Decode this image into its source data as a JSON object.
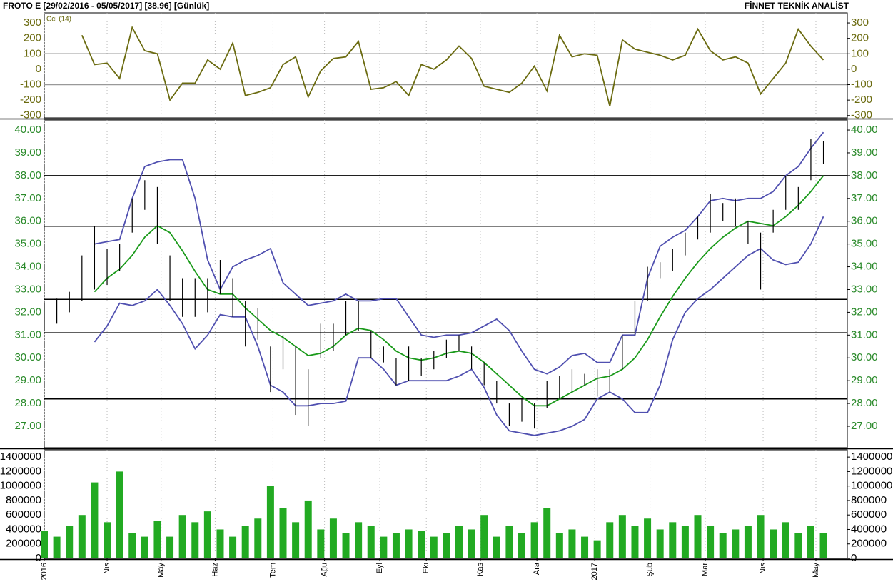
{
  "header": {
    "left": "FROTO E  [29/02/2016 - 05/05/2017]  [38.96]  [Günlük]",
    "right": "FİNNET TEKNİK ANALİST"
  },
  "chart_data": [
    {
      "type": "line",
      "title": "Cci (14)",
      "axis_color": "#6b6b10",
      "color": "#6b6b10",
      "values": [
        null,
        null,
        null,
        220,
        30,
        40,
        -60,
        270,
        120,
        100,
        -200,
        -90,
        -90,
        60,
        0,
        170,
        -170,
        -150,
        -120,
        30,
        80,
        -180,
        -10,
        70,
        80,
        180,
        -130,
        -120,
        -80,
        -170,
        30,
        0,
        60,
        150,
        70,
        -110,
        -130,
        -150,
        -90,
        20,
        -140,
        220,
        80,
        100,
        90,
        -240,
        190,
        130,
        110,
        90,
        60,
        90,
        260,
        120,
        60,
        80,
        40,
        -160,
        -60,
        40,
        260,
        150,
        60
      ],
      "ref_lines": [
        100,
        -100
      ],
      "ylim": [
        -315,
        365
      ],
      "yticks": [
        -300,
        -200,
        -100,
        0,
        100,
        200,
        300
      ],
      "xlim": [
        0,
        63.9
      ]
    },
    {
      "type": "range",
      "axis_color": "#2a8a2a",
      "bar_color": "#000000",
      "high": [
        32.4,
        32.6,
        32.9,
        34.5,
        35.8,
        34.8,
        35.0,
        37.0,
        37.8,
        37.5,
        34.5,
        33.5,
        33.5,
        33.5,
        34.3,
        33.5,
        32.5,
        32.2,
        30.5,
        31.0,
        30.5,
        29.5,
        31.5,
        31.5,
        32.5,
        32.5,
        31.2,
        30.5,
        30.0,
        30.5,
        30.0,
        30.3,
        30.8,
        31.0,
        30.5,
        29.8,
        29.0,
        28.0,
        28.2,
        28.0,
        29.0,
        29.2,
        29.5,
        29.3,
        29.5,
        29.5,
        31.0,
        32.5,
        34.0,
        34.2,
        34.8,
        35.5,
        36.2,
        37.2,
        36.8,
        37.0,
        36.0,
        35.5,
        36.5,
        38.0,
        37.5,
        39.6,
        39.5
      ],
      "low": [
        31.2,
        31.5,
        32.0,
        32.5,
        33.0,
        33.2,
        33.8,
        35.5,
        36.5,
        35.0,
        32.5,
        31.8,
        31.8,
        32.0,
        32.8,
        31.8,
        30.5,
        30.8,
        28.5,
        29.5,
        27.5,
        27.0,
        30.0,
        30.3,
        31.0,
        31.2,
        30.0,
        29.8,
        28.8,
        29.0,
        29.2,
        29.5,
        30.0,
        30.3,
        29.5,
        28.8,
        28.0,
        27.0,
        27.2,
        26.9,
        27.8,
        28.2,
        28.5,
        28.8,
        28.3,
        28.5,
        29.5,
        31.0,
        32.5,
        33.5,
        33.8,
        34.5,
        35.2,
        35.5,
        36.0,
        35.8,
        35.0,
        33.0,
        35.5,
        36.5,
        36.5,
        37.8,
        38.5
      ],
      "series": [
        {
          "color": "#5050b0",
          "values": [
            null,
            null,
            null,
            null,
            35.0,
            35.1,
            35.2,
            37.0,
            38.4,
            38.6,
            38.7,
            38.7,
            37.0,
            34.3,
            33.0,
            34.0,
            34.3,
            34.5,
            34.8,
            33.3,
            32.8,
            32.3,
            32.4,
            32.5,
            32.8,
            32.5,
            32.5,
            32.6,
            32.6,
            31.8,
            31.0,
            30.9,
            31.0,
            31.0,
            31.1,
            31.4,
            31.7,
            31.2,
            30.3,
            29.5,
            29.3,
            29.6,
            30.1,
            30.2,
            29.8,
            29.8,
            31.0,
            31.0,
            33.5,
            34.9,
            35.3,
            35.6,
            36.2,
            36.9,
            37.0,
            36.9,
            37.0,
            37.0,
            37.3,
            38.0,
            38.4,
            39.2,
            39.9
          ]
        },
        {
          "color": "#1a9a1a",
          "values": [
            null,
            null,
            null,
            null,
            32.9,
            33.5,
            33.9,
            34.5,
            35.3,
            35.8,
            35.5,
            34.7,
            33.8,
            33.0,
            32.8,
            32.8,
            32.2,
            31.7,
            31.2,
            30.9,
            30.5,
            30.1,
            30.2,
            30.5,
            31.0,
            31.3,
            31.2,
            30.8,
            30.3,
            30.0,
            29.9,
            30.0,
            30.2,
            30.3,
            30.2,
            29.8,
            29.3,
            28.8,
            28.3,
            27.9,
            27.9,
            28.2,
            28.5,
            28.8,
            29.1,
            29.2,
            29.5,
            30.0,
            30.8,
            31.8,
            32.7,
            33.5,
            34.2,
            34.8,
            35.3,
            35.7,
            36.0,
            35.9,
            35.8,
            36.2,
            36.7,
            37.3,
            38.0
          ]
        },
        {
          "color": "#5050b0",
          "values": [
            null,
            null,
            null,
            null,
            30.7,
            31.4,
            32.4,
            32.3,
            32.5,
            33.0,
            32.3,
            31.5,
            30.4,
            31.0,
            31.9,
            31.8,
            31.8,
            30.5,
            28.8,
            28.5,
            27.9,
            27.9,
            28.0,
            28.0,
            28.1,
            30.0,
            30.0,
            29.5,
            28.8,
            29.0,
            29.0,
            29.0,
            29.0,
            29.2,
            29.5,
            28.7,
            27.5,
            26.8,
            26.7,
            26.6,
            26.7,
            26.8,
            27.0,
            27.3,
            28.2,
            28.5,
            28.2,
            27.6,
            27.6,
            28.8,
            30.8,
            32.0,
            32.6,
            33.0,
            33.5,
            34.0,
            34.5,
            34.8,
            34.3,
            34.1,
            34.2,
            35.0,
            36.2
          ]
        }
      ],
      "hlines": [
        38.0,
        35.78,
        32.57,
        31.1,
        28.2
      ],
      "ylim": [
        26.06,
        40.44
      ],
      "yticks": [
        {
          "value": 27,
          "label": "27.00"
        },
        {
          "value": 28,
          "label": "28.00"
        },
        {
          "value": 29,
          "label": "29.00"
        },
        {
          "value": 30,
          "label": "30.00"
        },
        {
          "value": 31,
          "label": "31.00"
        },
        {
          "value": 32,
          "label": "32.00"
        },
        {
          "value": 33,
          "label": "33.00"
        },
        {
          "value": 34,
          "label": "34.00"
        },
        {
          "value": 35,
          "label": "35.00"
        },
        {
          "value": 36,
          "label": "36.00"
        },
        {
          "value": 37,
          "label": "37.00"
        },
        {
          "value": 38,
          "label": "38.00"
        },
        {
          "value": 39,
          "label": "39.00"
        },
        {
          "value": 40,
          "label": "40.00"
        }
      ],
      "xlim": [
        0,
        63.9
      ]
    },
    {
      "type": "bar",
      "axis_color": "#000000",
      "color": "#22aa22",
      "values": [
        380000,
        300000,
        450000,
        600000,
        1050000,
        500000,
        1200000,
        350000,
        300000,
        520000,
        300000,
        600000,
        500000,
        650000,
        400000,
        300000,
        450000,
        550000,
        1000000,
        700000,
        500000,
        800000,
        400000,
        550000,
        350000,
        500000,
        450000,
        300000,
        350000,
        400000,
        380000,
        300000,
        350000,
        450000,
        400000,
        600000,
        300000,
        450000,
        350000,
        500000,
        700000,
        350000,
        400000,
        300000,
        250000,
        500000,
        600000,
        450000,
        550000,
        400000,
        500000,
        450000,
        600000,
        450000,
        350000,
        400000,
        450000,
        600000,
        400000,
        500000,
        350000,
        450000,
        350000
      ],
      "ylim": [
        0,
        1500000
      ],
      "yticks": [
        0,
        200000,
        400000,
        600000,
        800000,
        1000000,
        1200000,
        1400000
      ],
      "xlim": [
        0,
        63.9
      ],
      "xticks": [
        {
          "value": 0,
          "label": "2016"
        },
        {
          "value": 5.0,
          "label": "Nis"
        },
        {
          "value": 9.3,
          "label": "May"
        },
        {
          "value": 13.6,
          "label": "Haz"
        },
        {
          "value": 18.2,
          "label": "Tem"
        },
        {
          "value": 22.3,
          "label": "Ağu"
        },
        {
          "value": 26.7,
          "label": "Eyl"
        },
        {
          "value": 30.4,
          "label": "Eki"
        },
        {
          "value": 34.7,
          "label": "Kas"
        },
        {
          "value": 39.2,
          "label": "Ara"
        },
        {
          "value": 43.8,
          "label": "2017"
        },
        {
          "value": 48.2,
          "label": "Şub"
        },
        {
          "value": 52.6,
          "label": "Mar"
        },
        {
          "value": 57.2,
          "label": "Nis"
        },
        {
          "value": 61.4,
          "label": "May"
        }
      ]
    }
  ]
}
